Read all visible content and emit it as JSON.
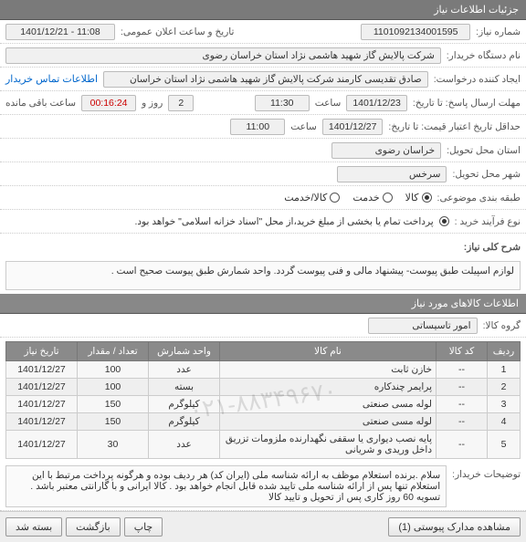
{
  "headers": {
    "main": "جزئیات اطلاعات نیاز",
    "items": "اطلاعات کالاهای مورد نیاز"
  },
  "form": {
    "need_no_label": "شماره نیاز:",
    "need_no": "1101092134001595",
    "pub_date_label": "تاریخ و ساعت اعلان عمومی:",
    "pub_date": "1401/12/21 - 11:08",
    "buyer_org_label": "نام دستگاه خریدار:",
    "buyer_org": "شرکت پالایش گاز شهید هاشمی نژاد   استان خراسان رضوی",
    "creator_label": "ایجاد کننده درخواست:",
    "creator": "صادق تقدیسی کارمند شرکت پالایش گاز شهید هاشمی نژاد   استان خراسان",
    "contact_link": "اطلاعات تماس خریدار",
    "deadline_label": "مهلت ارسال پاسخ: تا تاریخ:",
    "deadline_date": "1401/12/23",
    "time_label": "ساعت",
    "deadline_time": "11:30",
    "days_left": "2",
    "days_left_label": "روز و",
    "countdown": "00:16:24",
    "countdown_label": "ساعت باقی مانده",
    "valid_until_label": "حداقل تاریخ اعتبار قیمت: تا تاریخ:",
    "valid_until_date": "1401/12/27",
    "valid_until_time": "11:00",
    "province_label": "استان محل تحویل:",
    "province": "خراسان رضوی",
    "city_label": "شهر محل تحویل:",
    "city": "سرخس",
    "class_label": "طبقه بندی موضوعی:",
    "class_opts": [
      "کالا",
      "خدمت",
      "کالا/خدمت"
    ],
    "class_selected": 0,
    "proc_label": "نوع فرآیند خرید :",
    "proc_text": "پرداخت تمام یا بخشی از مبلغ خرید،از محل \"اسناد خزانه اسلامی\" خواهد بود.",
    "radio_dot": "●",
    "desc_label": "شرح کلی نیاز:",
    "desc_text": "لوازم اسپیلت  طبق پیوست- پیشنهاد مالی و فنی پیوست گردد.   واحد شمارش طبق پیوست صحیح است .",
    "group_label": "گروه کالا:",
    "group_value": "امور تاسیساتی",
    "notes_label": "توضیحات خریدار:",
    "notes_text": "سلام .برنده استعلام موظف به ارائه شناسه ملی (ایران کد) هر ردیف بوده و هرگونه پرداخت مرتبط با این استعلام تنها پس از ارائه شناسه ملی تایید شده قابل انجام خواهد بود . کالا ایرانی و با گارانتی معتبر باشد . تسویه 60 روز کاری پس از تحویل و تایید کالا"
  },
  "table": {
    "cols": [
      "ردیف",
      "کد کالا",
      "نام کالا",
      "واحد شمارش",
      "تعداد / مقدار",
      "تاریخ نیاز"
    ],
    "rows": [
      [
        "1",
        "--",
        "خازن ثابت",
        "عدد",
        "100",
        "1401/12/27"
      ],
      [
        "2",
        "--",
        "پرایمر چندکاره",
        "بسته",
        "100",
        "1401/12/27"
      ],
      [
        "3",
        "--",
        "لوله مسی صنعتی",
        "کیلوگرم",
        "150",
        "1401/12/27"
      ],
      [
        "4",
        "--",
        "لوله مسی صنعتی",
        "کیلوگرم",
        "150",
        "1401/12/27"
      ],
      [
        "5",
        "--",
        "پایه نصب دیواری یا سقفی نگهدارنده ملزومات تزریق داخل وریدی و شریانی",
        "عدد",
        "30",
        "1401/12/27"
      ]
    ],
    "col_widths": [
      "36px",
      "56px",
      "auto",
      "78px",
      "78px",
      "78px"
    ]
  },
  "watermark": "۰۲۱-۸۸۳۴۹۶۷۰",
  "footer": {
    "attachments": "مشاهده مدارک پیوستی (1)",
    "print": "چاپ",
    "back": "بازگشت",
    "close": "بسته شد"
  },
  "colors": {
    "header_bg": "#7a7a7a",
    "link": "#0066cc",
    "countdown": "#cc0000"
  }
}
